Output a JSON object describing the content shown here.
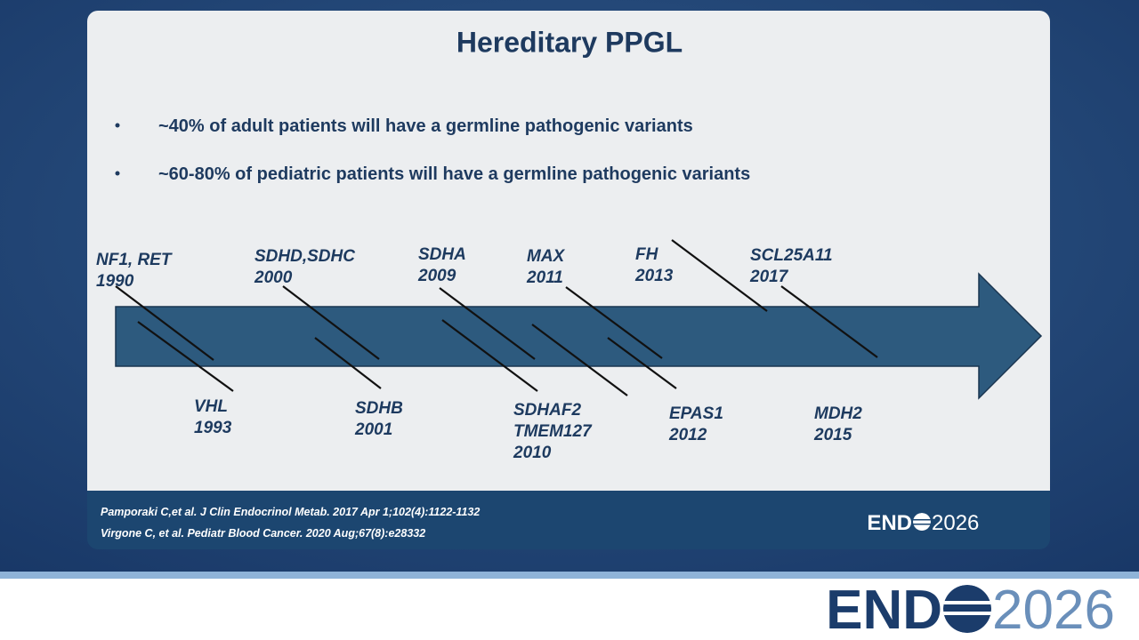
{
  "title": "Hereditary PPGL",
  "bullets": [
    "~40% of adult  patients will have a germline pathogenic variants",
    "~60-80% of pediatric patients will have a germline pathogenic variants"
  ],
  "timeline": {
    "above": [
      {
        "genes": [
          "NF1, RET"
        ],
        "year": "1990"
      },
      {
        "genes": [
          "SDHD,SDHC"
        ],
        "year": "2000"
      },
      {
        "genes": [
          "SDHA"
        ],
        "year": "2009"
      },
      {
        "genes": [
          "MAX"
        ],
        "year": "2011"
      },
      {
        "genes": [
          "FH"
        ],
        "year": "2013"
      },
      {
        "genes": [
          "SCL25A11"
        ],
        "year": "2017"
      }
    ],
    "below": [
      {
        "genes": [
          "VHL"
        ],
        "year": "1993"
      },
      {
        "genes": [
          "SDHB"
        ],
        "year": "2001"
      },
      {
        "genes": [
          "SDHAF2",
          "TMEM127"
        ],
        "year": "2010"
      },
      {
        "genes": [
          "EPAS1"
        ],
        "year": "2012"
      },
      {
        "genes": [
          "MDH2"
        ],
        "year": "2015"
      }
    ]
  },
  "references": [
    "Pamporaki C,et al. J Clin Endocrinol Metab. 2017 Apr 1;102(4):1122-1132",
    "Virgone C, et al. Pediatr Blood Cancer. 2020 Aug;67(8):e28332"
  ],
  "logo": {
    "left": "END",
    "right": "2026"
  }
}
